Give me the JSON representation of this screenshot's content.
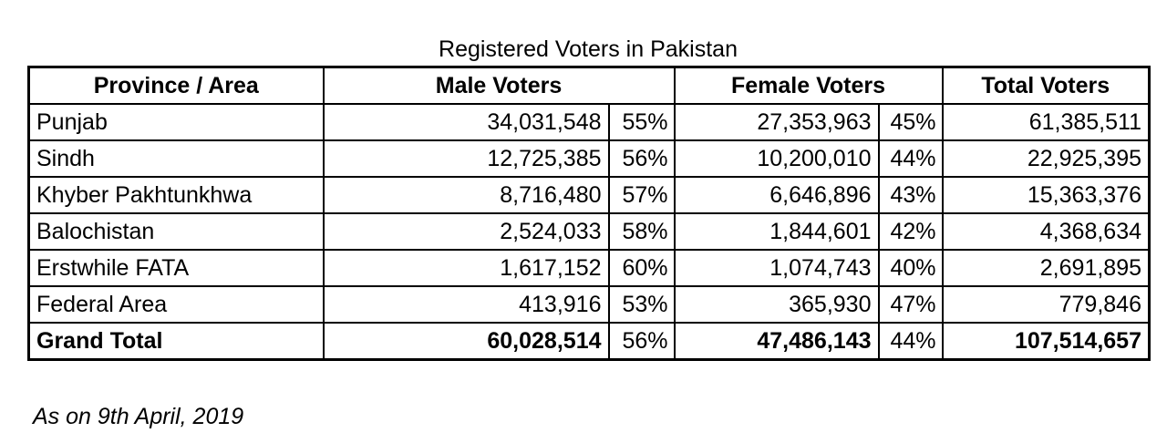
{
  "title": "Registered Voters in Pakistan",
  "headers": {
    "province": "Province / Area",
    "male": "Male Voters",
    "female": "Female Voters",
    "total": "Total Voters"
  },
  "rows": [
    {
      "province": "Punjab",
      "male": "34,031,548",
      "male_pct": "55%",
      "female": "27,353,963",
      "female_pct": "45%",
      "total": "61,385,511"
    },
    {
      "province": "Sindh",
      "male": "12,725,385",
      "male_pct": "56%",
      "female": "10,200,010",
      "female_pct": "44%",
      "total": "22,925,395"
    },
    {
      "province": "Khyber Pakhtunkhwa",
      "male": "8,716,480",
      "male_pct": "57%",
      "female": "6,646,896",
      "female_pct": "43%",
      "total": "15,363,376"
    },
    {
      "province": "Balochistan",
      "male": "2,524,033",
      "male_pct": "58%",
      "female": "1,844,601",
      "female_pct": "42%",
      "total": "4,368,634"
    },
    {
      "province": "Erstwhile FATA",
      "male": "1,617,152",
      "male_pct": "60%",
      "female": "1,074,743",
      "female_pct": "40%",
      "total": "2,691,895"
    },
    {
      "province": "Federal Area",
      "male": "413,916",
      "male_pct": "53%",
      "female": "365,930",
      "female_pct": "47%",
      "total": "779,846"
    }
  ],
  "grand_total": {
    "province": "Grand Total",
    "male": "60,028,514",
    "male_pct": "56%",
    "female": "47,486,143",
    "female_pct": "44%",
    "total": "107,514,657"
  },
  "note": "As on 9th April, 2019"
}
